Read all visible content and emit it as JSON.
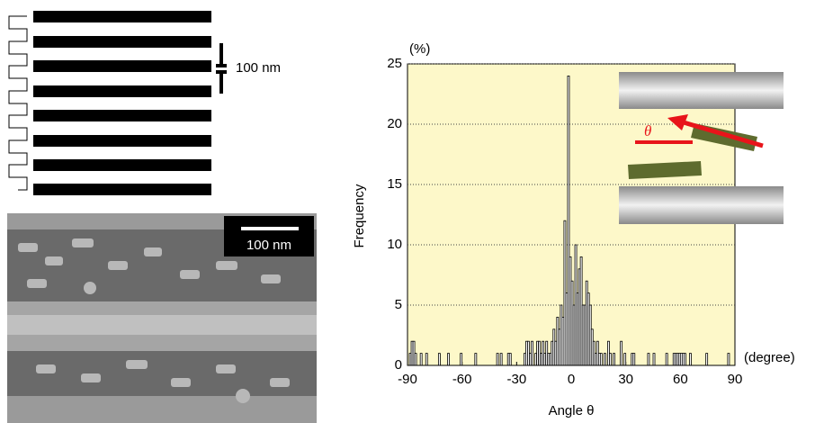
{
  "chart_data": {
    "type": "histogram",
    "ylabel": "Frequency",
    "yunit": "(%)",
    "xlabel": "Angle θ",
    "xunit": "(degree)",
    "bins": [
      -90,
      -89,
      -88,
      -87,
      -86,
      -85,
      -84,
      -83,
      -82,
      -81,
      -80,
      -79,
      -78,
      -77,
      -76,
      -75,
      -74,
      -73,
      -72,
      -71,
      -70,
      -69,
      -68,
      -67,
      -66,
      -65,
      -64,
      -63,
      -62,
      -61,
      -60,
      -59,
      -58,
      -57,
      -56,
      -55,
      -54,
      -53,
      -52,
      -51,
      -50,
      -49,
      -48,
      -47,
      -46,
      -45,
      -44,
      -43,
      -42,
      -41,
      -40,
      -39,
      -38,
      -37,
      -36,
      -35,
      -34,
      -33,
      -32,
      -31,
      -30,
      -29,
      -28,
      -27,
      -26,
      -25,
      -24,
      -23,
      -22,
      -21,
      -20,
      -19,
      -18,
      -17,
      -16,
      -15,
      -14,
      -13,
      -12,
      -11,
      -10,
      -9,
      -8,
      -7,
      -6,
      -5,
      -4,
      -3,
      -2,
      -1,
      0,
      1,
      2,
      3,
      4,
      5,
      6,
      7,
      8,
      9,
      10,
      11,
      12,
      13,
      14,
      15,
      16,
      17,
      18,
      19,
      20,
      21,
      22,
      23,
      24,
      25,
      26,
      27,
      28,
      29,
      30,
      31,
      32,
      33,
      34,
      35,
      36,
      37,
      38,
      39,
      40,
      41,
      42,
      43,
      44,
      45,
      46,
      47,
      48,
      49,
      50,
      51,
      52,
      53,
      54,
      55,
      56,
      57,
      58,
      59,
      60,
      61,
      62,
      63,
      64,
      65,
      66,
      67,
      68,
      69,
      70,
      71,
      72,
      73,
      74,
      75,
      76,
      77,
      78,
      79,
      80,
      81,
      82,
      83,
      84,
      85,
      86,
      87,
      88,
      89,
      90
    ],
    "values": [
      0,
      1,
      2,
      2,
      1,
      0,
      0,
      1,
      0,
      0,
      1,
      0,
      0,
      0,
      0,
      0,
      0,
      1,
      0,
      0,
      0,
      0,
      1,
      0,
      0,
      0,
      0,
      0,
      0,
      1,
      0,
      0,
      0,
      0,
      0,
      0,
      0,
      1,
      0,
      0,
      0,
      0,
      0,
      0,
      0,
      0,
      0,
      0,
      0,
      1,
      0,
      1,
      0,
      0,
      0,
      1,
      1,
      0,
      0,
      0,
      0,
      0,
      0,
      0,
      1,
      2,
      2,
      1,
      2,
      0,
      1,
      2,
      2,
      1,
      2,
      1,
      2,
      1,
      1,
      2,
      3,
      2,
      4,
      3,
      5,
      4,
      12,
      6,
      24,
      9,
      7,
      5,
      10,
      6,
      8,
      9,
      5,
      5,
      7,
      6,
      5,
      3,
      2,
      1,
      2,
      1,
      1,
      0,
      1,
      0,
      2,
      1,
      0,
      1,
      0,
      0,
      0,
      2,
      0,
      1,
      0,
      0,
      0,
      1,
      1,
      0,
      0,
      0,
      0,
      0,
      0,
      0,
      1,
      0,
      0,
      1,
      0,
      0,
      0,
      0,
      0,
      0,
      1,
      0,
      0,
      0,
      1,
      1,
      1,
      1,
      1,
      1,
      1,
      0,
      0,
      1,
      0,
      0,
      0,
      0,
      0,
      0,
      0,
      0,
      1,
      0,
      0,
      0,
      0,
      0,
      0,
      0,
      0,
      0,
      0,
      0,
      1,
      0,
      0,
      0
    ],
    "color": "#000000",
    "background": "#fdf8c9",
    "xlim": [
      -90,
      90
    ],
    "xticks": [
      -90,
      -60,
      -30,
      0,
      30,
      60,
      90
    ],
    "ylim": [
      0,
      25
    ],
    "yticks": [
      0,
      5,
      10,
      15,
      20,
      25
    ],
    "grid": true
  },
  "figure": {
    "schematic_scale": "100 nm",
    "sem_scale": "100 nm",
    "inset_angle": "θ"
  }
}
